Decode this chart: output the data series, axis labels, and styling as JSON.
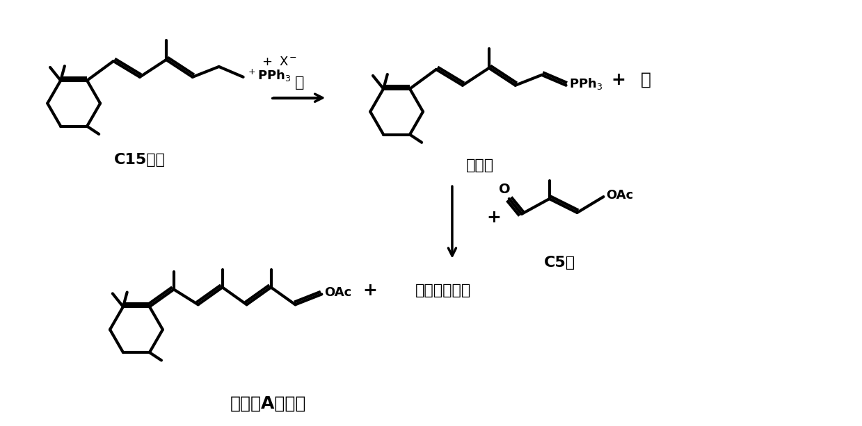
{
  "background_color": "#ffffff",
  "line_color": "#000000",
  "line_width": 3.0,
  "fig_width": 12.39,
  "fig_height": 6.13,
  "labels": {
    "c15_salt": "C15炉盐",
    "ylide": "叶立德",
    "salt": "盐",
    "base": "碱",
    "c5_aldehyde": "C5醇",
    "vitamin_a": "维生素A醛酸酯",
    "triphenyl": "三苯基氧化炉",
    "plus": "+",
    "PPh3_plus": "$^+$PPh$_3$",
    "PPh3_ylide": "PPh$_3$",
    "OAc": "OAc",
    "X_minus": "X$^-$",
    "O": "O"
  },
  "font_size_struct": 14,
  "font_size_label": 16,
  "font_size_large": 20
}
